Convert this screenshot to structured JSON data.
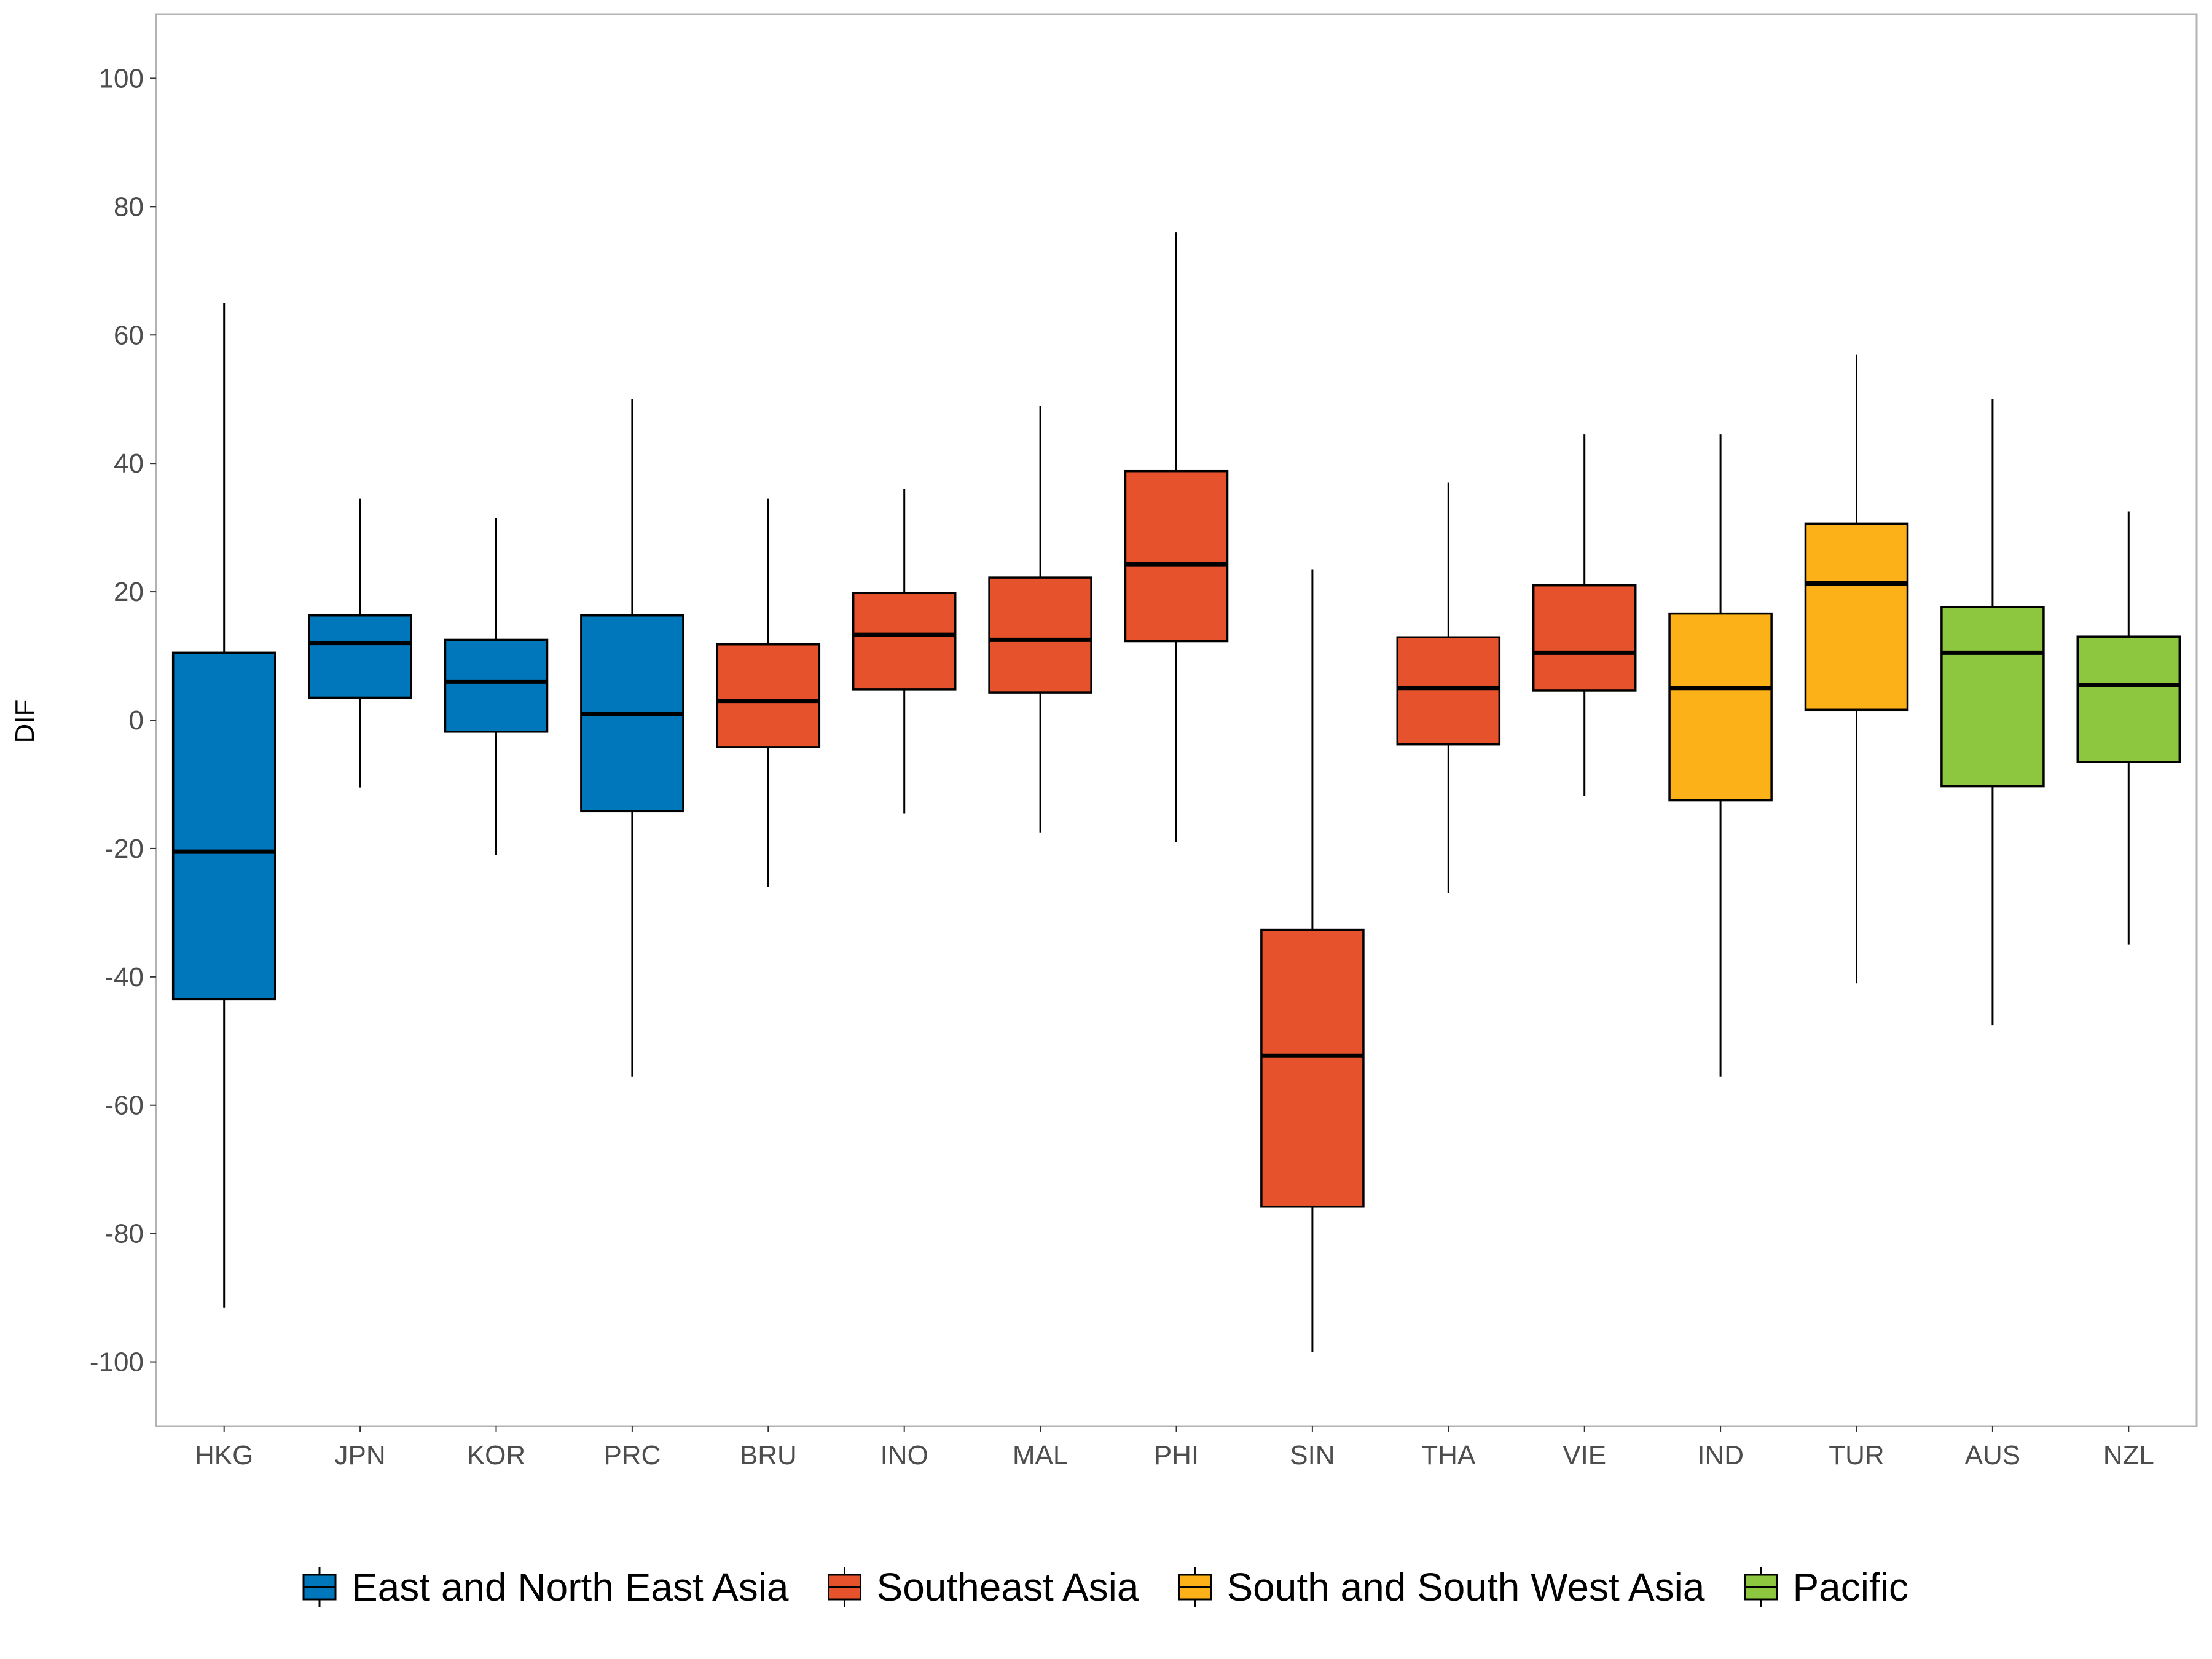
{
  "chart_data": {
    "type": "boxplot",
    "ylabel": "DIF",
    "xlabel": "",
    "ylim": [
      -110,
      110
    ],
    "yticks": [
      100,
      80,
      60,
      40,
      20,
      0,
      -20,
      -40,
      -60,
      -80,
      -100
    ],
    "yticks_text": [
      "100",
      "80",
      "60",
      "40",
      "20",
      "0",
      "-20",
      "-40",
      "-60",
      "-80",
      "-100"
    ],
    "grid": false,
    "legend_position": "bottom",
    "groups": [
      {
        "name": "East and North East Asia",
        "color": "#0077BB"
      },
      {
        "name": "Southeast Asia",
        "color": "#E6522C"
      },
      {
        "name": "South and South West Asia",
        "color": "#FBB117"
      },
      {
        "name": "Pacific",
        "color": "#8DC63F"
      }
    ],
    "categories": [
      "HKG",
      "JPN",
      "KOR",
      "PRC",
      "BRU",
      "INO",
      "MAL",
      "PHI",
      "SIN",
      "THA",
      "VIE",
      "IND",
      "TUR",
      "AUS",
      "NZL"
    ],
    "boxes": [
      {
        "label": "HKG",
        "group": 0,
        "min": -91.5,
        "q1": -43.5,
        "median": -20.5,
        "q3": 10.5,
        "max": 65
      },
      {
        "label": "JPN",
        "group": 0,
        "min": -10.5,
        "q1": 3.5,
        "median": 12,
        "q3": 16.3,
        "max": 34.5
      },
      {
        "label": "KOR",
        "group": 0,
        "min": -21,
        "q1": -1.8,
        "median": 6,
        "q3": 12.5,
        "max": 31.5
      },
      {
        "label": "PRC",
        "group": 0,
        "min": -55.5,
        "q1": -14.2,
        "median": 1,
        "q3": 16.3,
        "max": 50
      },
      {
        "label": "BRU",
        "group": 1,
        "min": -26,
        "q1": -4.2,
        "median": 3,
        "q3": 11.8,
        "max": 34.5
      },
      {
        "label": "INO",
        "group": 1,
        "min": -14.5,
        "q1": 4.8,
        "median": 13.3,
        "q3": 19.8,
        "max": 36
      },
      {
        "label": "MAL",
        "group": 1,
        "min": -17.5,
        "q1": 4.3,
        "median": 12.5,
        "q3": 22.2,
        "max": 49
      },
      {
        "label": "PHI",
        "group": 1,
        "min": -19,
        "q1": 12.3,
        "median": 24.3,
        "q3": 38.8,
        "max": 76
      },
      {
        "label": "SIN",
        "group": 1,
        "min": -98.5,
        "q1": -75.8,
        "median": -52.3,
        "q3": -32.7,
        "max": 23.5
      },
      {
        "label": "THA",
        "group": 1,
        "min": -27,
        "q1": -3.8,
        "median": 5,
        "q3": 12.9,
        "max": 37
      },
      {
        "label": "VIE",
        "group": 1,
        "min": -11.8,
        "q1": 4.6,
        "median": 10.5,
        "q3": 21,
        "max": 44.5
      },
      {
        "label": "IND",
        "group": 2,
        "min": -55.5,
        "q1": -12.5,
        "median": 5,
        "q3": 16.6,
        "max": 44.5
      },
      {
        "label": "TUR",
        "group": 2,
        "min": -41,
        "q1": 1.6,
        "median": 21.3,
        "q3": 30.6,
        "max": 57
      },
      {
        "label": "AUS",
        "group": 3,
        "min": -47.5,
        "q1": -10.3,
        "median": 10.5,
        "q3": 17.6,
        "max": 50
      },
      {
        "label": "NZL",
        "group": 3,
        "min": -35,
        "q1": -6.5,
        "median": 5.5,
        "q3": 13,
        "max": 32.5
      }
    ]
  }
}
